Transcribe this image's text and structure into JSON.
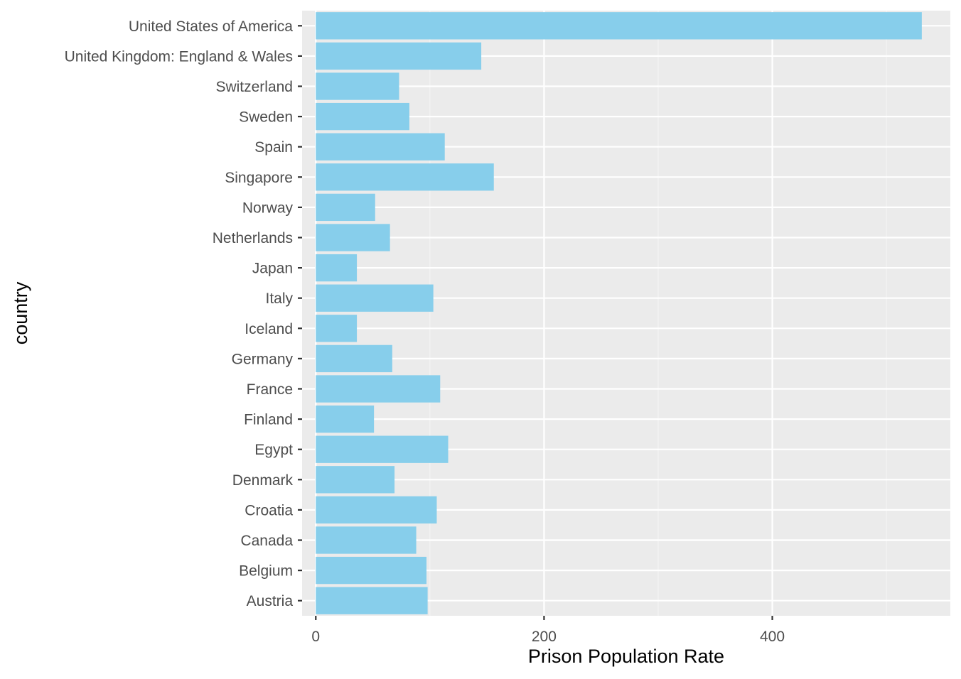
{
  "chart_data": {
    "type": "bar",
    "orientation": "horizontal",
    "xlabel": "Prison Population Rate",
    "ylabel": "country",
    "xlim": [
      -12,
      556
    ],
    "xticks": [
      0,
      200,
      400
    ],
    "xtick_labels": [
      "0",
      "200",
      "400"
    ],
    "grid": true,
    "categories": [
      "United States of America",
      "United Kingdom: England & Wales",
      "Switzerland",
      "Sweden",
      "Spain",
      "Singapore",
      "Norway",
      "Netherlands",
      "Japan",
      "Italy",
      "Iceland",
      "Germany",
      "France",
      "Finland",
      "Egypt",
      "Denmark",
      "Croatia",
      "Canada",
      "Belgium",
      "Austria"
    ],
    "values": [
      531,
      145,
      73,
      82,
      113,
      156,
      52,
      65,
      36,
      103,
      36,
      67,
      109,
      51,
      116,
      69,
      106,
      88,
      97,
      98
    ],
    "colors": {
      "bar": "#87ceeb",
      "panel": "#ebebeb",
      "grid_major": "#ffffff",
      "grid_minor": "#f4f4f4",
      "tick": "#333333"
    }
  }
}
